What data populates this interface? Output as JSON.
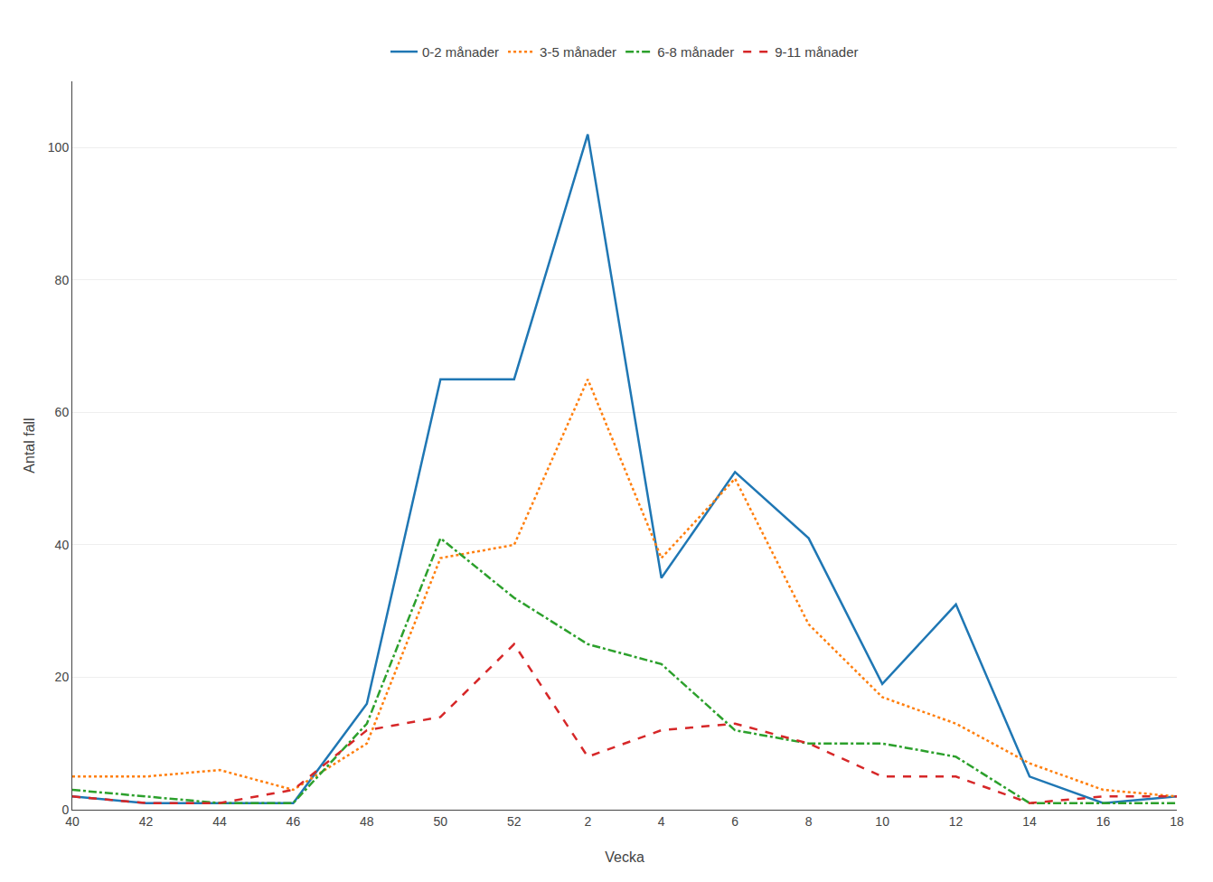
{
  "chart_data": {
    "type": "line",
    "xlabel": "Vecka",
    "ylabel": "Antal fall",
    "categories": [
      "40",
      "42",
      "44",
      "46",
      "48",
      "50",
      "52",
      "2",
      "4",
      "6",
      "8",
      "10",
      "12",
      "14",
      "16",
      "18"
    ],
    "series": [
      {
        "name": "0-2 månader",
        "line_style": "solid",
        "values": [
          2,
          1,
          1,
          1,
          16,
          65,
          65,
          102,
          35,
          51,
          41,
          19,
          31,
          5,
          1,
          2
        ]
      },
      {
        "name": "3-5 månader",
        "line_style": "dot",
        "values": [
          5,
          5,
          6,
          3,
          10,
          38,
          40,
          65,
          38,
          50,
          28,
          17,
          13,
          7,
          3,
          2
        ]
      },
      {
        "name": "6-8 månader",
        "line_style": "dashdot",
        "values": [
          3,
          2,
          1,
          1,
          13,
          41,
          32,
          25,
          22,
          12,
          10,
          10,
          8,
          1,
          1,
          1
        ]
      },
      {
        "name": "9-11 månader",
        "line_style": "dash",
        "values": [
          2,
          1,
          1,
          3,
          12,
          14,
          25,
          8,
          12,
          13,
          10,
          5,
          5,
          1,
          2,
          2
        ]
      }
    ],
    "ylim": [
      0,
      110
    ],
    "yticks": [
      0,
      20,
      40,
      60,
      80,
      100
    ],
    "grid": true,
    "legend": "top"
  }
}
